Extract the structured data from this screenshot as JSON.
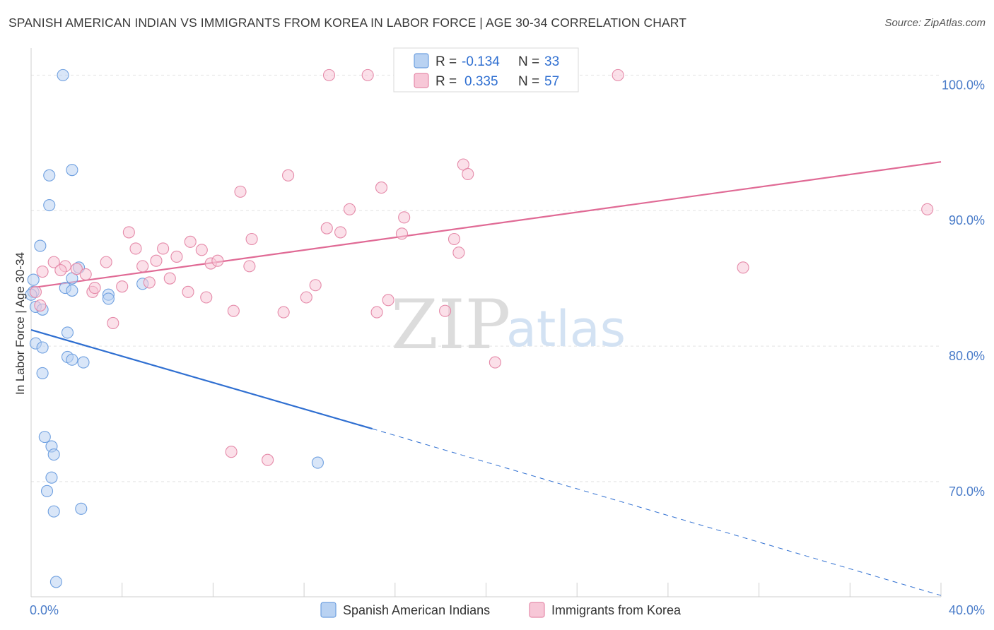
{
  "title": "SPANISH AMERICAN INDIAN VS IMMIGRANTS FROM KOREA IN LABOR FORCE | AGE 30-34 CORRELATION CHART",
  "source": "Source: ZipAtlas.com",
  "watermark": {
    "zip": "ZIP",
    "atlas": "atlas"
  },
  "chart_data": {
    "type": "scatter",
    "title": "SPANISH AMERICAN INDIAN VS IMMIGRANTS FROM KOREA IN LABOR FORCE | AGE 30-34 CORRELATION CHART",
    "xlabel": "",
    "ylabel": "In Labor Force | Age 30-34",
    "xlim": [
      0,
      40
    ],
    "ylim": [
      61.5,
      102
    ],
    "x_tick_labels": [
      {
        "value": 0,
        "label": "0.0%"
      },
      {
        "value": 40,
        "label": "40.0%"
      }
    ],
    "y_tick_labels": [
      {
        "value": 100,
        "label": "100.0%"
      },
      {
        "value": 90,
        "label": "90.0%"
      },
      {
        "value": 80,
        "label": "80.0%"
      },
      {
        "value": 70,
        "label": "70.0%"
      }
    ],
    "legend_position": "top-center",
    "series": [
      {
        "name": "Spanish American Indians",
        "color": "#6fa0e0",
        "fill": "#b9d2f2",
        "R": "-0.134",
        "N": "33",
        "trend": {
          "x0": 0,
          "y0": 81.2,
          "x1": 15,
          "y1": 73.9,
          "x_dash_end": 40,
          "y_dash_end": 61.6
        },
        "points": [
          [
            1.4,
            100.0
          ],
          [
            1.8,
            93.0
          ],
          [
            0.8,
            92.6
          ],
          [
            0.8,
            90.4
          ],
          [
            0.4,
            87.4
          ],
          [
            2.1,
            85.8
          ],
          [
            0.1,
            84.9
          ],
          [
            0.1,
            84.0
          ],
          [
            1.5,
            84.3
          ],
          [
            1.8,
            84.1
          ],
          [
            1.8,
            85.0
          ],
          [
            3.4,
            83.8
          ],
          [
            3.4,
            83.5
          ],
          [
            4.9,
            84.6
          ],
          [
            0.2,
            82.9
          ],
          [
            0.5,
            82.7
          ],
          [
            1.6,
            81.0
          ],
          [
            0.2,
            80.2
          ],
          [
            0.5,
            79.9
          ],
          [
            1.6,
            79.2
          ],
          [
            1.8,
            79.0
          ],
          [
            2.3,
            78.8
          ],
          [
            0.5,
            78.0
          ],
          [
            12.6,
            71.4
          ],
          [
            0.6,
            73.3
          ],
          [
            0.9,
            72.6
          ],
          [
            1.0,
            72.0
          ],
          [
            0.9,
            70.3
          ],
          [
            0.7,
            69.3
          ],
          [
            1.0,
            67.8
          ],
          [
            2.2,
            68.0
          ],
          [
            1.1,
            62.6
          ],
          [
            0.0,
            83.8
          ]
        ]
      },
      {
        "name": "Immigrants from Korea",
        "color": "#e58aa9",
        "fill": "#f7c7d7",
        "R": "0.335",
        "N": "57",
        "trend": {
          "x0": 0,
          "y0": 84.3,
          "x1": 40,
          "y1": 93.6
        },
        "points": [
          [
            13.1,
            100.0
          ],
          [
            14.8,
            100.0
          ],
          [
            19.7,
            100.0
          ],
          [
            25.8,
            100.0
          ],
          [
            0.5,
            85.5
          ],
          [
            0.2,
            84.0
          ],
          [
            0.4,
            83.0
          ],
          [
            1.0,
            86.2
          ],
          [
            1.5,
            85.9
          ],
          [
            1.3,
            85.6
          ],
          [
            2.0,
            85.7
          ],
          [
            2.4,
            85.3
          ],
          [
            2.7,
            84.0
          ],
          [
            2.8,
            84.3
          ],
          [
            3.3,
            86.2
          ],
          [
            3.6,
            81.7
          ],
          [
            4.0,
            84.4
          ],
          [
            4.3,
            88.4
          ],
          [
            4.6,
            87.2
          ],
          [
            4.9,
            85.9
          ],
          [
            5.2,
            84.7
          ],
          [
            5.5,
            86.3
          ],
          [
            5.8,
            87.2
          ],
          [
            6.1,
            85.0
          ],
          [
            6.4,
            86.6
          ],
          [
            6.9,
            84.0
          ],
          [
            7.0,
            87.7
          ],
          [
            7.5,
            87.1
          ],
          [
            7.7,
            83.6
          ],
          [
            7.9,
            86.1
          ],
          [
            8.2,
            86.3
          ],
          [
            8.8,
            72.2
          ],
          [
            8.9,
            82.6
          ],
          [
            9.2,
            91.4
          ],
          [
            9.6,
            85.9
          ],
          [
            9.7,
            87.9
          ],
          [
            10.4,
            71.6
          ],
          [
            11.1,
            82.5
          ],
          [
            11.3,
            92.6
          ],
          [
            12.1,
            83.6
          ],
          [
            12.5,
            84.5
          ],
          [
            13.0,
            88.7
          ],
          [
            13.6,
            88.4
          ],
          [
            14.0,
            90.1
          ],
          [
            15.2,
            82.5
          ],
          [
            15.4,
            91.7
          ],
          [
            15.7,
            83.4
          ],
          [
            16.3,
            88.3
          ],
          [
            16.4,
            89.5
          ],
          [
            18.2,
            82.6
          ],
          [
            18.6,
            87.9
          ],
          [
            18.8,
            86.9
          ],
          [
            19.0,
            93.4
          ],
          [
            19.2,
            92.7
          ],
          [
            20.4,
            78.8
          ],
          [
            31.3,
            85.8
          ],
          [
            39.4,
            90.1
          ]
        ]
      }
    ]
  }
}
